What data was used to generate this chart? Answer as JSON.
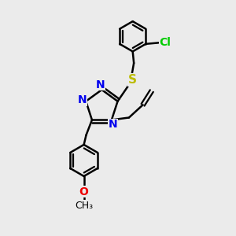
{
  "bg_color": "#ebebeb",
  "bond_color": "#000000",
  "n_color": "#0000ee",
  "s_color": "#bbbb00",
  "o_color": "#ee0000",
  "cl_color": "#00cc00",
  "bond_width": 1.8,
  "figsize": [
    3.0,
    3.0
  ],
  "dpi": 100,
  "xlim": [
    0,
    10
  ],
  "ylim": [
    0,
    10
  ]
}
